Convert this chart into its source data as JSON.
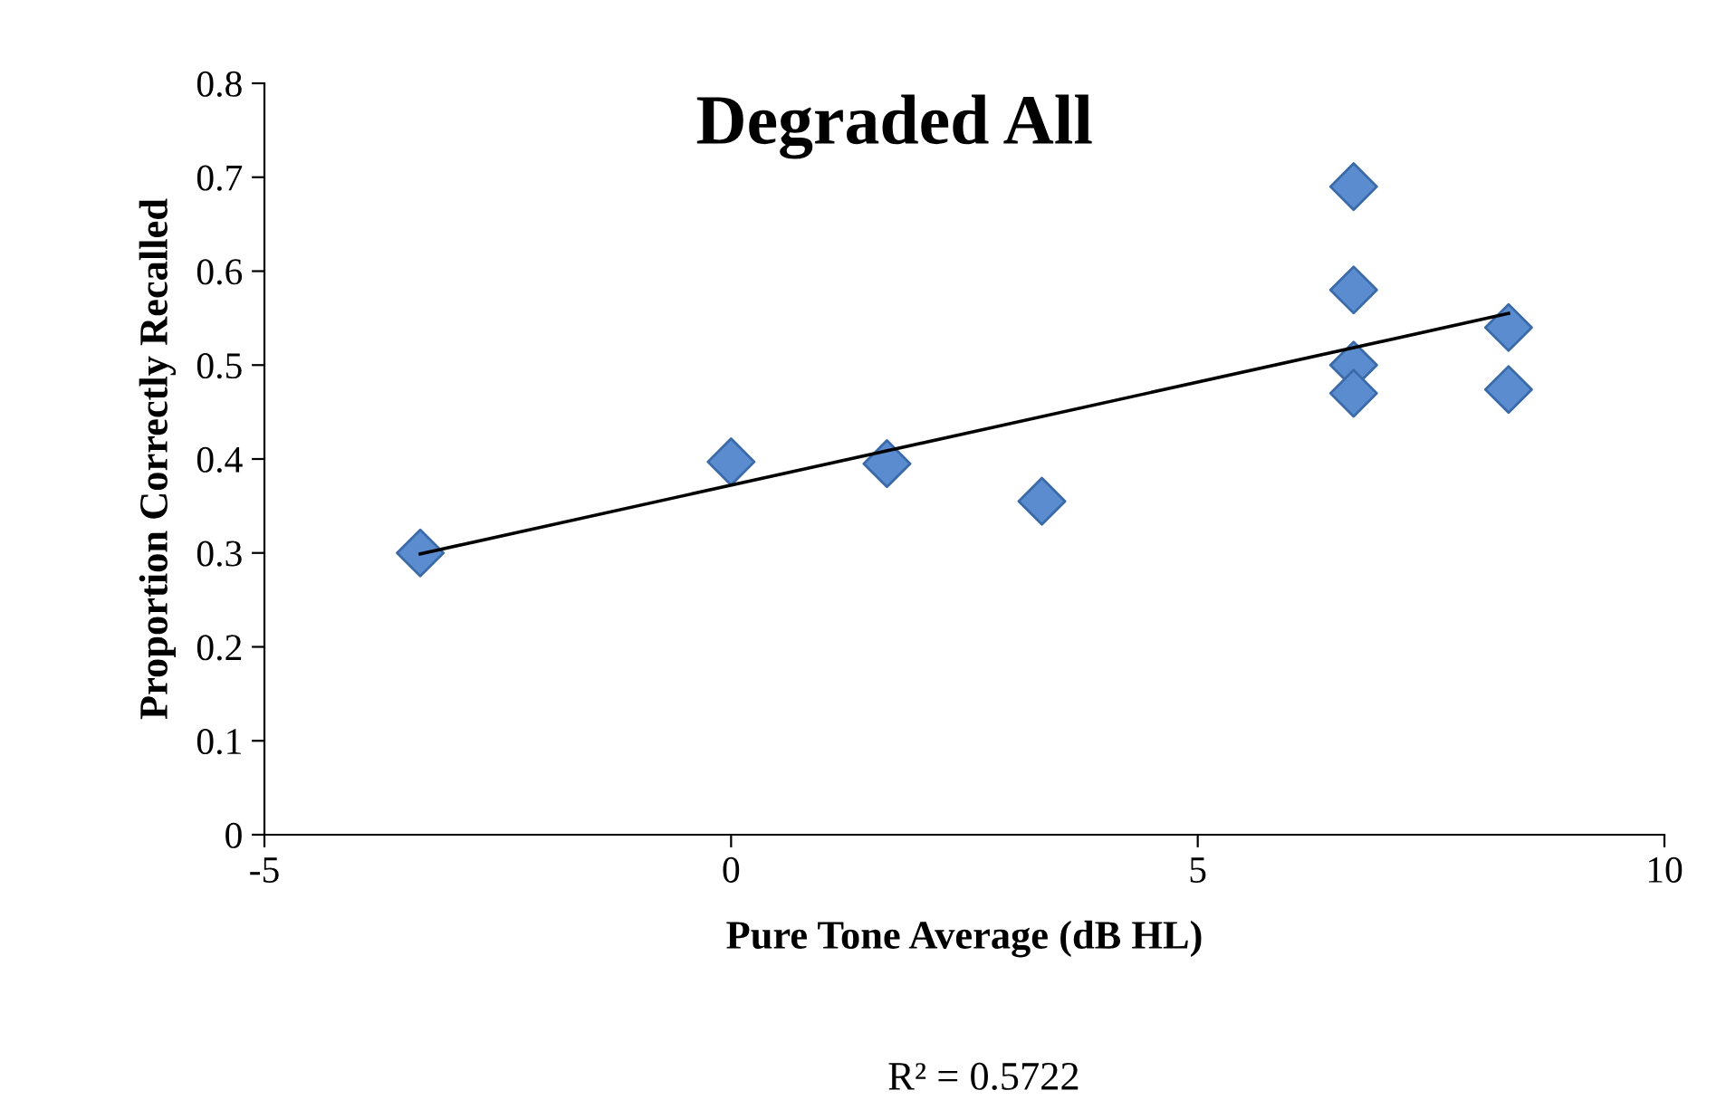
{
  "chart_data": {
    "type": "scatter",
    "title": "Degraded All",
    "xlabel": "Pure Tone Average (dB HL)",
    "ylabel": "Proportion Correctly Recalled",
    "annotations": [
      "R² = 0.5722"
    ],
    "grid": false,
    "legend": false,
    "xlim": [
      -5,
      10
    ],
    "xticks": [
      -5,
      0,
      5,
      10
    ],
    "ylim": [
      0,
      0.8
    ],
    "yticks": [
      0,
      0.1,
      0.2,
      0.3,
      0.4,
      0.5,
      0.6,
      0.7,
      0.8
    ],
    "series": [
      {
        "marker": "diamond",
        "color": "#5b8ccf",
        "x": [
          -3.33,
          0,
          1.67,
          3.33,
          6.67,
          6.67,
          6.67,
          6.67,
          8.33,
          8.33
        ],
        "values": [
          0.3,
          0.397,
          0.395,
          0.355,
          0.69,
          0.58,
          0.5,
          0.47,
          0.54,
          0.474
        ]
      },
      {
        "type": "line",
        "color": "#000000",
        "x": [
          -3.33,
          8.33
        ],
        "values": [
          0.299,
          0.555
        ]
      }
    ]
  }
}
